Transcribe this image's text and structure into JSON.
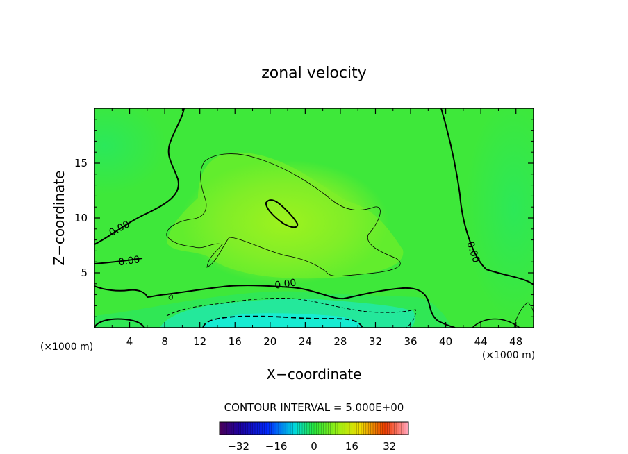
{
  "chart_data": {
    "type": "heatmap",
    "title": "zonal velocity",
    "xlabel": "X−coordinate",
    "ylabel": "Z−coordinate",
    "x_unit_left": "(×1000 m)",
    "x_unit_right": "(×1000 m)",
    "xlim": [
      0,
      50
    ],
    "ylim": [
      0,
      20
    ],
    "x_ticks": [
      4,
      8,
      12,
      16,
      20,
      24,
      28,
      32,
      36,
      40,
      44,
      48
    ],
    "y_ticks": [
      5,
      10,
      15
    ],
    "contour_interval_text": "CONTOUR INTERVAL = 5.000E+00",
    "contour_labels": [
      {
        "text": "0.00",
        "x": 3.0,
        "y": 8.8,
        "angle": -28
      },
      {
        "text": "0.00",
        "x": 4.0,
        "y": 5.8,
        "angle": -8
      },
      {
        "text": "0.00",
        "x": 21.8,
        "y": 3.7,
        "angle": -8
      },
      {
        "text": "0.00",
        "x": 42.8,
        "y": 6.8,
        "angle": 72
      }
    ],
    "colorbar": {
      "range": [
        -40,
        40
      ],
      "ticks": [
        -32,
        -16,
        0,
        16,
        32
      ],
      "tick_labels": [
        "−32",
        "−16",
        "0",
        "16",
        "32"
      ]
    },
    "field_description_values": {
      "max_u_approx": 7,
      "min_u_approx": -8
    }
  },
  "colors": {
    "background_field": "#33e833",
    "contour_line": "#000000"
  }
}
